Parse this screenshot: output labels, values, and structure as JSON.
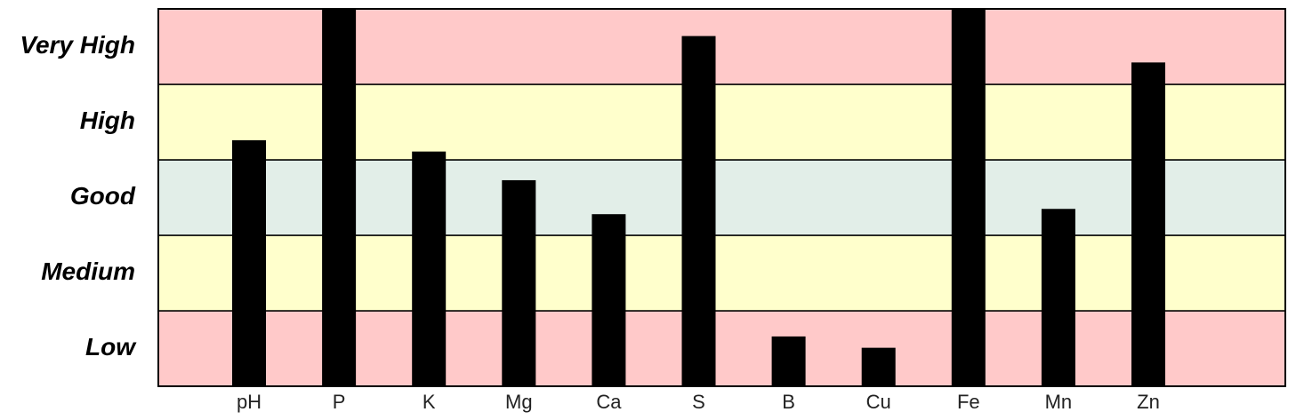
{
  "chart_data": {
    "type": "bar",
    "categories": [
      "pH",
      "P",
      "K",
      "Mg",
      "Ca",
      "S",
      "B",
      "Cu",
      "Fe",
      "Mn",
      "Zn"
    ],
    "values": [
      3.26,
      5,
      3.11,
      2.73,
      2.28,
      4.64,
      0.66,
      0.51,
      5,
      2.35,
      4.29
    ],
    "color": "#000000",
    "ylim": [
      0,
      5
    ],
    "bands": [
      {
        "from": 0,
        "to": 1,
        "label": "Low",
        "color": "#ffc9c9"
      },
      {
        "from": 1,
        "to": 2,
        "label": "Medium",
        "color": "#ffffcc"
      },
      {
        "from": 2,
        "to": 3,
        "label": "Good",
        "color": "#e2eee8"
      },
      {
        "from": 3,
        "to": 4,
        "label": "High",
        "color": "#ffffcc"
      },
      {
        "from": 4,
        "to": 5,
        "label": "Very High",
        "color": "#ffc9c9"
      }
    ]
  }
}
